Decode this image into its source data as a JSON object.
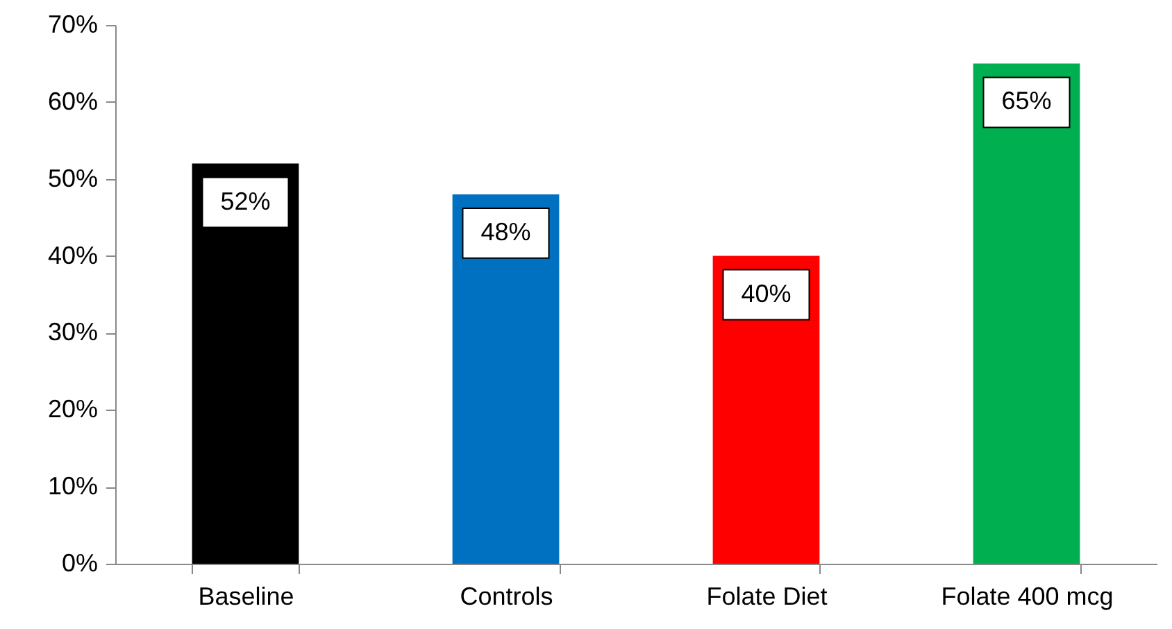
{
  "chart_data": {
    "type": "bar",
    "categories": [
      "Baseline",
      "Controls",
      "Folate Diet",
      "Folate 400 mcg"
    ],
    "values": [
      52,
      48,
      40,
      65
    ],
    "colors": [
      "#000000",
      "#0070c0",
      "#ff0000",
      "#00b050"
    ],
    "value_labels": [
      "52%",
      "48%",
      "40%",
      "65%"
    ],
    "ylim": [
      0,
      70
    ],
    "yticks": [
      {
        "value": 0,
        "label": "0%"
      },
      {
        "value": 10,
        "label": "10%"
      },
      {
        "value": 20,
        "label": "20%"
      },
      {
        "value": 30,
        "label": "30%"
      },
      {
        "value": 40,
        "label": "40%"
      },
      {
        "value": 50,
        "label": "50%"
      },
      {
        "value": 60,
        "label": "60%"
      },
      {
        "value": 70,
        "label": "70%"
      }
    ],
    "grid": false
  }
}
